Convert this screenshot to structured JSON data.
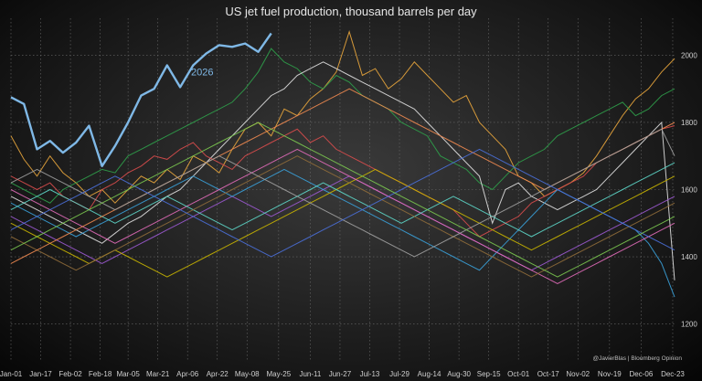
{
  "chart_data": {
    "type": "line",
    "title": "US jet fuel production, thousand barrels per day",
    "xlabel": "",
    "ylabel": "",
    "x_ticks": [
      "Jan-01",
      "Jan-17",
      "Feb-02",
      "Feb-18",
      "Mar-05",
      "Mar-21",
      "Apr-06",
      "Apr-22",
      "May-08",
      "May-25",
      "Jun-11",
      "Jun-27",
      "Jul-13",
      "Jul-29",
      "Aug-14",
      "Aug-30",
      "Sep-15",
      "Oct-01",
      "Oct-17",
      "Nov-02",
      "Nov-19",
      "Dec-06",
      "Dec-23"
    ],
    "y_ticks": [
      1200,
      1400,
      1600,
      1800,
      2000
    ],
    "ylim": [
      1090,
      2110
    ],
    "weeks_shown": 52,
    "grid": true,
    "highlight": {
      "label": "2026",
      "color": "#7fb8e6",
      "values": [
        1875,
        1855,
        1720,
        1745,
        1710,
        1740,
        1790,
        1670,
        1730,
        1800,
        1880,
        1900,
        1970,
        1905,
        1970,
        2005,
        2030,
        2025,
        2035,
        2010,
        2065
      ]
    },
    "series": [
      {
        "color": "#e8a53c",
        "values": [
          1760,
          1690,
          1640,
          1700,
          1650,
          1620,
          1580,
          1600,
          1560,
          1600,
          1640,
          1620,
          1660,
          1630,
          1700,
          1680,
          1650,
          1720,
          1780,
          1800,
          1760,
          1840,
          1820,
          1870,
          1900,
          1950,
          2070,
          1940,
          1960,
          1900,
          1930,
          1980,
          1940,
          1900,
          1860,
          1880,
          1800,
          1760,
          1720,
          1640,
          1620,
          1580,
          1600,
          1620,
          1650,
          1700,
          1760,
          1820,
          1870,
          1900,
          1950,
          1990
        ]
      },
      {
        "color": "#2f9e4a",
        "values": [
          1620,
          1600,
          1580,
          1560,
          1600,
          1620,
          1640,
          1660,
          1650,
          1700,
          1720,
          1740,
          1760,
          1780,
          1800,
          1820,
          1840,
          1860,
          1900,
          1950,
          2020,
          1980,
          1960,
          1920,
          1900,
          1940,
          1920,
          1880,
          1860,
          1840,
          1800,
          1780,
          1760,
          1700,
          1680,
          1660,
          1620,
          1600,
          1640,
          1680,
          1700,
          1720,
          1760,
          1780,
          1800,
          1820,
          1840,
          1860,
          1820,
          1840,
          1880,
          1900
        ]
      },
      {
        "color": "#e0e0e0",
        "values": [
          1580,
          1560,
          1540,
          1520,
          1500,
          1480,
          1460,
          1440,
          1470,
          1500,
          1520,
          1550,
          1580,
          1600,
          1640,
          1680,
          1720,
          1760,
          1800,
          1840,
          1880,
          1900,
          1940,
          1960,
          1980,
          1960,
          1940,
          1920,
          1900,
          1880,
          1860,
          1840,
          1800,
          1760,
          1720,
          1680,
          1640,
          1500,
          1600,
          1620,
          1580,
          1560,
          1540,
          1560,
          1580,
          1600,
          1640,
          1680,
          1720,
          1760,
          1800,
          1330
        ]
      },
      {
        "color": "#d94c4c",
        "values": [
          1640,
          1620,
          1600,
          1620,
          1580,
          1560,
          1540,
          1600,
          1620,
          1650,
          1670,
          1700,
          1690,
          1720,
          1740,
          1700,
          1680,
          1660,
          1700,
          1720,
          1740,
          1760,
          1780,
          1740,
          1760,
          1720,
          1700,
          1680,
          1660,
          1640,
          1620,
          1600,
          1580,
          1560,
          1540,
          1500,
          1460,
          1480,
          1500,
          1520,
          1560,
          1580,
          1600,
          1620,
          1640,
          1680,
          1700,
          1720,
          1740,
          1760,
          1780,
          1790
        ]
      },
      {
        "color": "#9b59d0",
        "values": [
          1520,
          1500,
          1480,
          1460,
          1440,
          1420,
          1400,
          1380,
          1400,
          1420,
          1440,
          1460,
          1480,
          1500,
          1520,
          1540,
          1560,
          1580,
          1560,
          1540,
          1520,
          1540,
          1560,
          1580,
          1600,
          1620,
          1640,
          1620,
          1600,
          1580,
          1560,
          1540,
          1520,
          1500,
          1480,
          1460,
          1440,
          1420,
          1400,
          1380,
          1360,
          1380,
          1400,
          1420,
          1440,
          1460,
          1480,
          1500,
          1520,
          1540,
          1560,
          1580
        ]
      },
      {
        "color": "#3aa0d8",
        "values": [
          1560,
          1540,
          1520,
          1500,
          1480,
          1460,
          1480,
          1500,
          1520,
          1540,
          1560,
          1580,
          1600,
          1620,
          1640,
          1620,
          1600,
          1580,
          1600,
          1620,
          1640,
          1660,
          1640,
          1620,
          1600,
          1580,
          1560,
          1540,
          1520,
          1500,
          1480,
          1460,
          1440,
          1420,
          1400,
          1380,
          1360,
          1400,
          1440,
          1480,
          1520,
          1560,
          1600,
          1580,
          1560,
          1540,
          1520,
          1500,
          1480,
          1440,
          1380,
          1280
        ]
      },
      {
        "color": "#c8b400",
        "values": [
          1500,
          1480,
          1460,
          1440,
          1420,
          1400,
          1380,
          1400,
          1420,
          1400,
          1380,
          1360,
          1340,
          1360,
          1380,
          1400,
          1420,
          1440,
          1460,
          1480,
          1500,
          1520,
          1540,
          1560,
          1580,
          1600,
          1620,
          1640,
          1660,
          1640,
          1620,
          1600,
          1580,
          1560,
          1540,
          1520,
          1500,
          1480,
          1460,
          1440,
          1420,
          1440,
          1460,
          1480,
          1500,
          1520,
          1540,
          1560,
          1580,
          1600,
          1620,
          1640
        ]
      },
      {
        "color": "#e06ab8",
        "values": [
          1600,
          1580,
          1560,
          1540,
          1520,
          1500,
          1480,
          1460,
          1440,
          1460,
          1480,
          1500,
          1520,
          1540,
          1560,
          1580,
          1600,
          1620,
          1640,
          1660,
          1680,
          1700,
          1720,
          1700,
          1680,
          1660,
          1640,
          1620,
          1600,
          1580,
          1560,
          1540,
          1520,
          1500,
          1480,
          1460,
          1440,
          1420,
          1400,
          1380,
          1360,
          1340,
          1320,
          1340,
          1360,
          1380,
          1400,
          1420,
          1440,
          1460,
          1480,
          1500
        ]
      },
      {
        "color": "#5dd6c8",
        "values": [
          1540,
          1560,
          1580,
          1600,
          1580,
          1560,
          1540,
          1520,
          1500,
          1520,
          1540,
          1560,
          1580,
          1560,
          1540,
          1520,
          1500,
          1480,
          1500,
          1520,
          1540,
          1560,
          1580,
          1600,
          1620,
          1600,
          1580,
          1560,
          1540,
          1520,
          1500,
          1520,
          1540,
          1560,
          1580,
          1560,
          1540,
          1520,
          1500,
          1480,
          1460,
          1480,
          1500,
          1520,
          1540,
          1560,
          1580,
          1600,
          1620,
          1640,
          1660,
          1680
        ]
      },
      {
        "color": "#8f6b3a",
        "values": [
          1460,
          1440,
          1420,
          1400,
          1380,
          1360,
          1380,
          1400,
          1420,
          1440,
          1460,
          1480,
          1500,
          1520,
          1540,
          1560,
          1580,
          1600,
          1620,
          1640,
          1660,
          1680,
          1700,
          1680,
          1660,
          1640,
          1620,
          1600,
          1580,
          1560,
          1540,
          1520,
          1500,
          1480,
          1460,
          1440,
          1420,
          1400,
          1380,
          1360,
          1340,
          1360,
          1380,
          1400,
          1420,
          1440,
          1460,
          1480,
          1500,
          1520,
          1540,
          1560
        ]
      },
      {
        "color": "#f08a50",
        "values": [
          1380,
          1400,
          1420,
          1440,
          1460,
          1480,
          1500,
          1520,
          1540,
          1560,
          1580,
          1600,
          1620,
          1640,
          1660,
          1680,
          1700,
          1720,
          1740,
          1760,
          1780,
          1800,
          1820,
          1840,
          1860,
          1880,
          1900,
          1880,
          1860,
          1840,
          1820,
          1800,
          1780,
          1760,
          1740,
          1720,
          1700,
          1680,
          1660,
          1640,
          1620,
          1600,
          1620,
          1640,
          1660,
          1680,
          1700,
          1720,
          1740,
          1760,
          1780,
          1800
        ]
      },
      {
        "color": "#a0a0a0",
        "values": [
          1620,
          1640,
          1660,
          1640,
          1620,
          1600,
          1580,
          1560,
          1540,
          1560,
          1580,
          1600,
          1620,
          1640,
          1660,
          1680,
          1700,
          1680,
          1660,
          1640,
          1620,
          1600,
          1580,
          1560,
          1540,
          1520,
          1500,
          1480,
          1460,
          1440,
          1420,
          1400,
          1420,
          1440,
          1460,
          1480,
          1500,
          1520,
          1540,
          1560,
          1580,
          1600,
          1620,
          1640,
          1660,
          1680,
          1700,
          1720,
          1740,
          1760,
          1780,
          1700
        ]
      },
      {
        "color": "#4a6fd8",
        "values": [
          1480,
          1500,
          1520,
          1540,
          1560,
          1580,
          1600,
          1620,
          1640,
          1620,
          1600,
          1580,
          1560,
          1540,
          1520,
          1500,
          1480,
          1460,
          1440,
          1420,
          1400,
          1420,
          1440,
          1460,
          1480,
          1500,
          1520,
          1540,
          1560,
          1580,
          1600,
          1620,
          1640,
          1660,
          1680,
          1700,
          1720,
          1700,
          1680,
          1660,
          1640,
          1620,
          1600,
          1580,
          1560,
          1540,
          1520,
          1500,
          1480,
          1460,
          1440,
          1420
        ]
      },
      {
        "color": "#7ac74f",
        "values": [
          1420,
          1440,
          1460,
          1480,
          1500,
          1520,
          1540,
          1560,
          1580,
          1600,
          1620,
          1640,
          1660,
          1680,
          1700,
          1720,
          1740,
          1760,
          1780,
          1800,
          1780,
          1760,
          1740,
          1720,
          1700,
          1680,
          1660,
          1640,
          1620,
          1600,
          1580,
          1560,
          1540,
          1520,
          1500,
          1480,
          1460,
          1440,
          1420,
          1400,
          1380,
          1360,
          1340,
          1360,
          1380,
          1400,
          1420,
          1440,
          1460,
          1480,
          1500,
          1520
        ]
      }
    ]
  },
  "credit": "@JavierBlas | Bloomberg Opinion"
}
